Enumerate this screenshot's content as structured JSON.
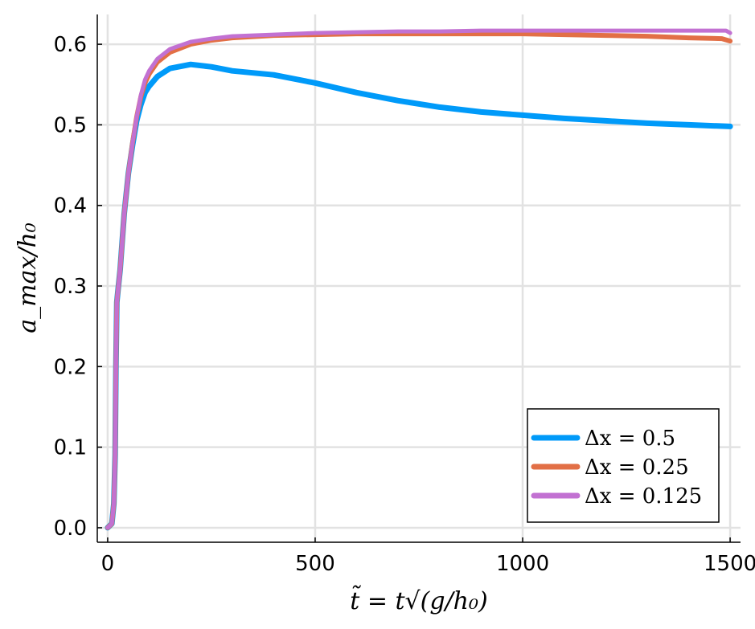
{
  "chart_data": {
    "type": "line",
    "xlabel": "t̃ = t√(g/h₀)",
    "ylabel": "a_max/h₀",
    "xlim": [
      -25,
      1525
    ],
    "ylim": [
      -0.018,
      0.637
    ],
    "xticks": [
      0,
      500,
      1000,
      1500
    ],
    "xtick_labels": [
      "0",
      "500",
      "1000",
      "1500"
    ],
    "yticks": [
      0.0,
      0.1,
      0.2,
      0.3,
      0.4,
      0.5,
      0.6
    ],
    "ytick_labels": [
      "0.0",
      "0.1",
      "0.2",
      "0.3",
      "0.4",
      "0.5",
      "0.6"
    ],
    "grid": true,
    "legend_position": "bottom-right",
    "series": [
      {
        "name": "Δx = 0.5",
        "color": "#009af9",
        "x": [
          0,
          10,
          15,
          18,
          20,
          22,
          25,
          30,
          40,
          50,
          60,
          70,
          80,
          90,
          100,
          120,
          150,
          200,
          250,
          300,
          400,
          500,
          600,
          700,
          800,
          900,
          1000,
          1100,
          1200,
          1300,
          1400,
          1500
        ],
        "y": [
          0.0,
          0.005,
          0.03,
          0.09,
          0.2,
          0.28,
          0.295,
          0.32,
          0.39,
          0.44,
          0.475,
          0.505,
          0.525,
          0.54,
          0.548,
          0.56,
          0.57,
          0.575,
          0.572,
          0.567,
          0.562,
          0.552,
          0.54,
          0.53,
          0.522,
          0.516,
          0.512,
          0.508,
          0.505,
          0.502,
          0.5,
          0.498
        ]
      },
      {
        "name": "Δx = 0.25",
        "color": "#e26f46",
        "x": [
          0,
          10,
          15,
          18,
          20,
          22,
          25,
          30,
          40,
          50,
          60,
          70,
          80,
          90,
          100,
          120,
          150,
          200,
          250,
          300,
          400,
          500,
          600,
          700,
          800,
          900,
          1000,
          1100,
          1200,
          1300,
          1400,
          1480,
          1500
        ],
        "y": [
          0.0,
          0.005,
          0.03,
          0.09,
          0.2,
          0.28,
          0.295,
          0.32,
          0.39,
          0.44,
          0.478,
          0.51,
          0.535,
          0.552,
          0.563,
          0.578,
          0.59,
          0.6,
          0.605,
          0.608,
          0.611,
          0.612,
          0.613,
          0.613,
          0.613,
          0.613,
          0.613,
          0.612,
          0.611,
          0.61,
          0.608,
          0.607,
          0.604
        ]
      },
      {
        "name": "Δx = 0.125",
        "color": "#c271d2",
        "x": [
          0,
          10,
          15,
          18,
          20,
          22,
          25,
          30,
          40,
          50,
          60,
          70,
          80,
          90,
          100,
          120,
          150,
          200,
          250,
          300,
          400,
          500,
          600,
          700,
          800,
          900,
          1000,
          1100,
          1200,
          1300,
          1400,
          1490,
          1500
        ],
        "y": [
          0.0,
          0.005,
          0.03,
          0.09,
          0.2,
          0.28,
          0.295,
          0.32,
          0.39,
          0.44,
          0.478,
          0.51,
          0.537,
          0.556,
          0.567,
          0.582,
          0.594,
          0.603,
          0.607,
          0.61,
          0.612,
          0.614,
          0.615,
          0.616,
          0.616,
          0.617,
          0.617,
          0.617,
          0.617,
          0.617,
          0.617,
          0.617,
          0.614
        ]
      }
    ]
  }
}
